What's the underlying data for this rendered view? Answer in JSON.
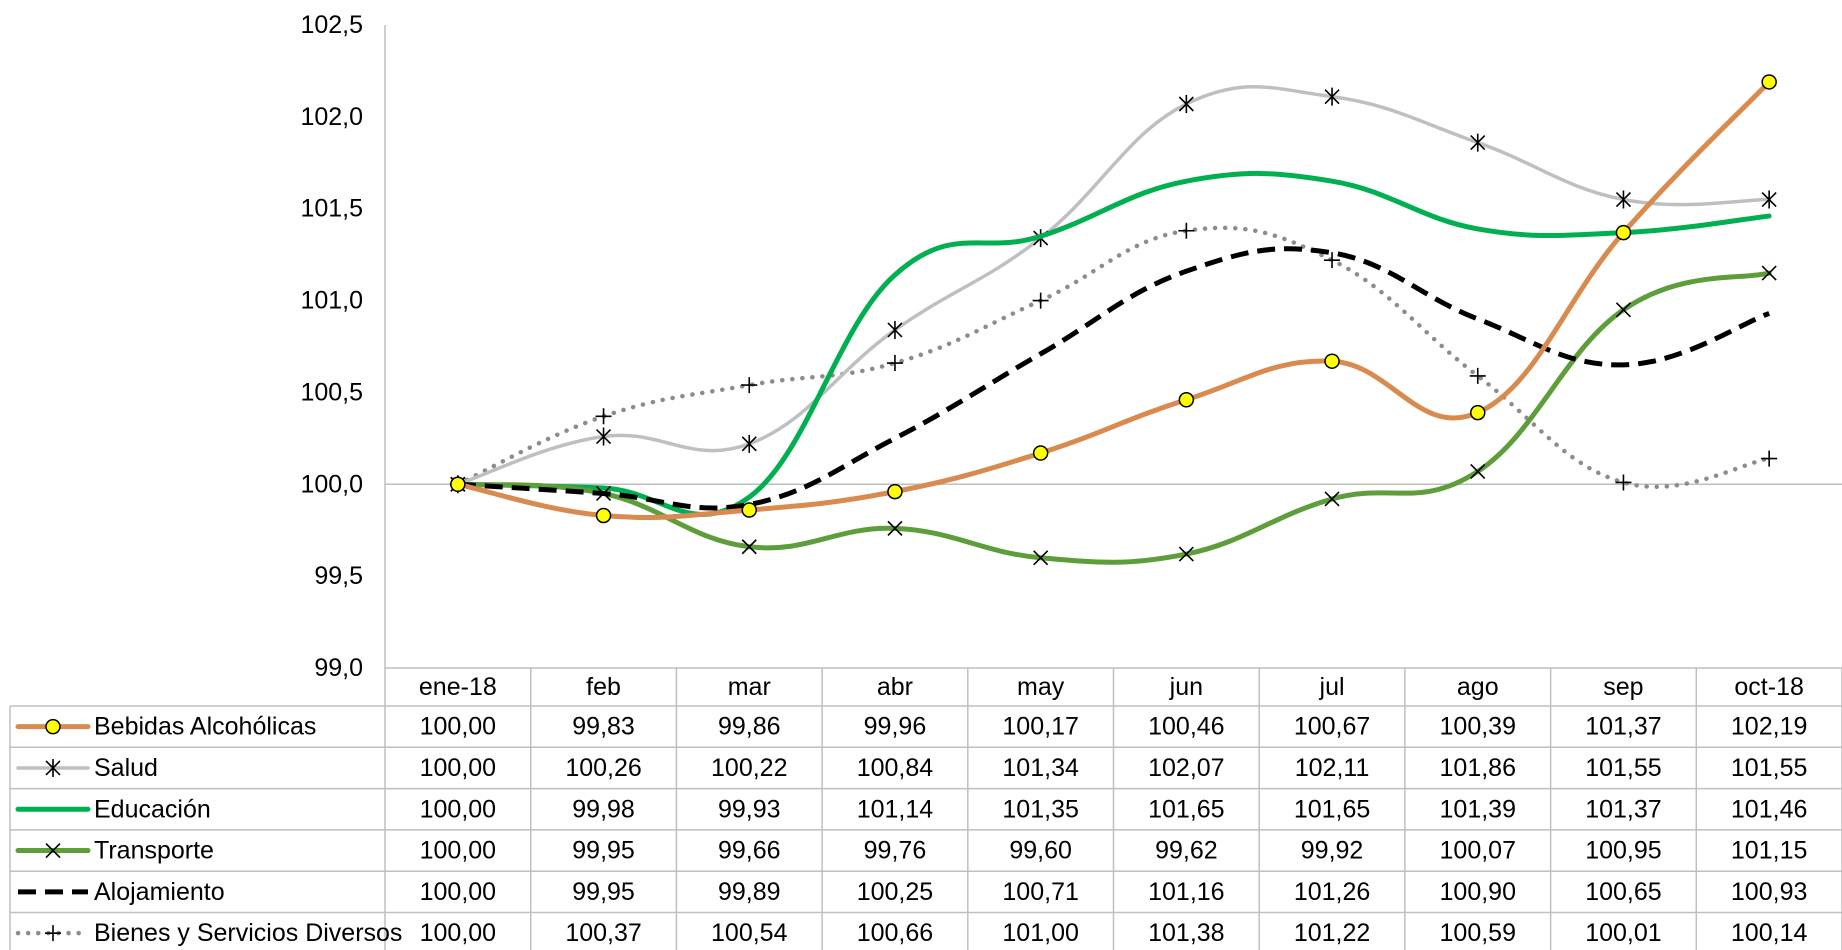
{
  "chart_data": {
    "type": "line",
    "title": "",
    "xlabel": "",
    "ylabel": "",
    "categories": [
      "ene-18",
      "feb",
      "mar",
      "abr",
      "may",
      "jun",
      "jul",
      "ago",
      "sep",
      "oct-18"
    ],
    "ylim": [
      99.0,
      102.5
    ],
    "yticks": [
      "99,0",
      "99,5",
      "100,0",
      "100,5",
      "101,0",
      "101,5",
      "102,0",
      "102,5"
    ],
    "ytick_values": [
      99.0,
      99.5,
      100.0,
      100.5,
      101.0,
      101.5,
      102.0,
      102.5
    ],
    "baseline": 100.0,
    "grid": false,
    "legend": "data-table-below",
    "series": [
      {
        "name": "Bebidas Alcohólicas",
        "color": "#D98A4E",
        "marker": "circle",
        "style": "solid",
        "values": [
          100.0,
          99.83,
          99.86,
          99.96,
          100.17,
          100.46,
          100.67,
          100.39,
          101.37,
          102.19
        ],
        "labels": [
          "100,00",
          "99,83",
          "99,86",
          "99,96",
          "100,17",
          "100,46",
          "100,67",
          "100,39",
          "101,37",
          "102,19"
        ]
      },
      {
        "name": "Salud",
        "color": "#BFBFBF",
        "marker": "star",
        "style": "solid",
        "values": [
          100.0,
          100.26,
          100.22,
          100.84,
          101.34,
          102.07,
          102.11,
          101.86,
          101.55,
          101.55
        ],
        "labels": [
          "100,00",
          "100,26",
          "100,22",
          "100,84",
          "101,34",
          "102,07",
          "102,11",
          "101,86",
          "101,55",
          "101,55"
        ]
      },
      {
        "name": "Educación",
        "color": "#00B050",
        "marker": "none",
        "style": "solid",
        "values": [
          100.0,
          99.98,
          99.93,
          101.14,
          101.35,
          101.65,
          101.65,
          101.39,
          101.37,
          101.46
        ],
        "labels": [
          "100,00",
          "99,98",
          "99,93",
          "101,14",
          "101,35",
          "101,65",
          "101,65",
          "101,39",
          "101,37",
          "101,46"
        ]
      },
      {
        "name": "Transporte",
        "color": "#5E9E3A",
        "marker": "x",
        "style": "solid",
        "values": [
          100.0,
          99.95,
          99.66,
          99.76,
          99.6,
          99.62,
          99.92,
          100.07,
          100.95,
          101.15
        ],
        "labels": [
          "100,00",
          "99,95",
          "99,66",
          "99,76",
          "99,60",
          "99,62",
          "99,92",
          "100,07",
          "100,95",
          "101,15"
        ]
      },
      {
        "name": "Alojamiento",
        "color": "#000000",
        "marker": "none",
        "style": "dashed",
        "values": [
          100.0,
          99.95,
          99.89,
          100.25,
          100.71,
          101.16,
          101.26,
          100.9,
          100.65,
          100.93
        ],
        "labels": [
          "100,00",
          "99,95",
          "99,89",
          "100,25",
          "100,71",
          "101,16",
          "101,26",
          "100,90",
          "100,65",
          "100,93"
        ]
      },
      {
        "name": "Bienes y Servicios Diversos",
        "color": "#8C8C8C",
        "marker": "plus",
        "style": "dotted",
        "values": [
          100.0,
          100.37,
          100.54,
          100.66,
          101.0,
          101.38,
          101.22,
          100.59,
          100.01,
          100.14
        ],
        "labels": [
          "100,00",
          "100,37",
          "100,54",
          "100,66",
          "101,00",
          "101,38",
          "101,22",
          "100,59",
          "100,01",
          "100,14"
        ]
      }
    ]
  }
}
